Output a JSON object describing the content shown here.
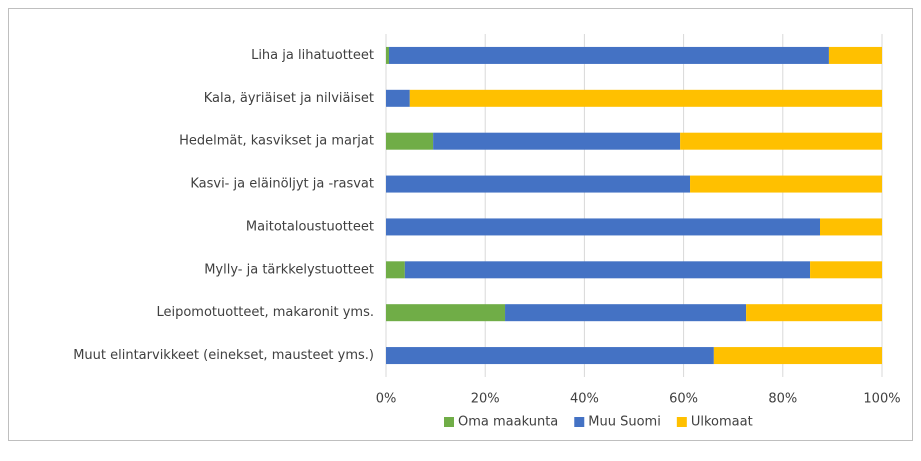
{
  "chart_data": {
    "type": "stacked-bar-horizontal",
    "categories": [
      "Liha ja lihatuotteet",
      "Kala, äyriäiset ja nilviäiset",
      "Hedelmät, kasvikset ja marjat",
      "Kasvi- ja eläinöljyt ja -rasvat",
      "Maitotaloustuotteet",
      "Mylly- ja tärkkelystuotteet",
      "Leipomotuotteet, makaronit yms.",
      "Muut elintarvikkeet (einekset, mausteet yms.)"
    ],
    "series": [
      {
        "name": "Oma maakunta",
        "color": "#70ad47",
        "values": [
          0.6,
          0,
          9.5,
          0,
          0,
          3.8,
          24,
          0
        ]
      },
      {
        "name": "Muu Suomi",
        "color": "#4472c4",
        "values": [
          88.7,
          4.8,
          49.8,
          61.3,
          87.5,
          81.7,
          48.6,
          66.1
        ]
      },
      {
        "name": "Ulkomaat",
        "color": "#ffc000",
        "values": [
          10.7,
          95.2,
          40.7,
          38.7,
          12.5,
          14.5,
          27.4,
          33.9
        ]
      }
    ],
    "xlim": [
      0,
      100
    ],
    "xticks": [
      {
        "value": 0,
        "label": "0%"
      },
      {
        "value": 20,
        "label": "20%"
      },
      {
        "value": 40,
        "label": "40%"
      },
      {
        "value": 60,
        "label": "60%"
      },
      {
        "value": 80,
        "label": "80%"
      },
      {
        "value": 100,
        "label": "100%"
      }
    ],
    "grid": true,
    "legend": "bottom"
  }
}
